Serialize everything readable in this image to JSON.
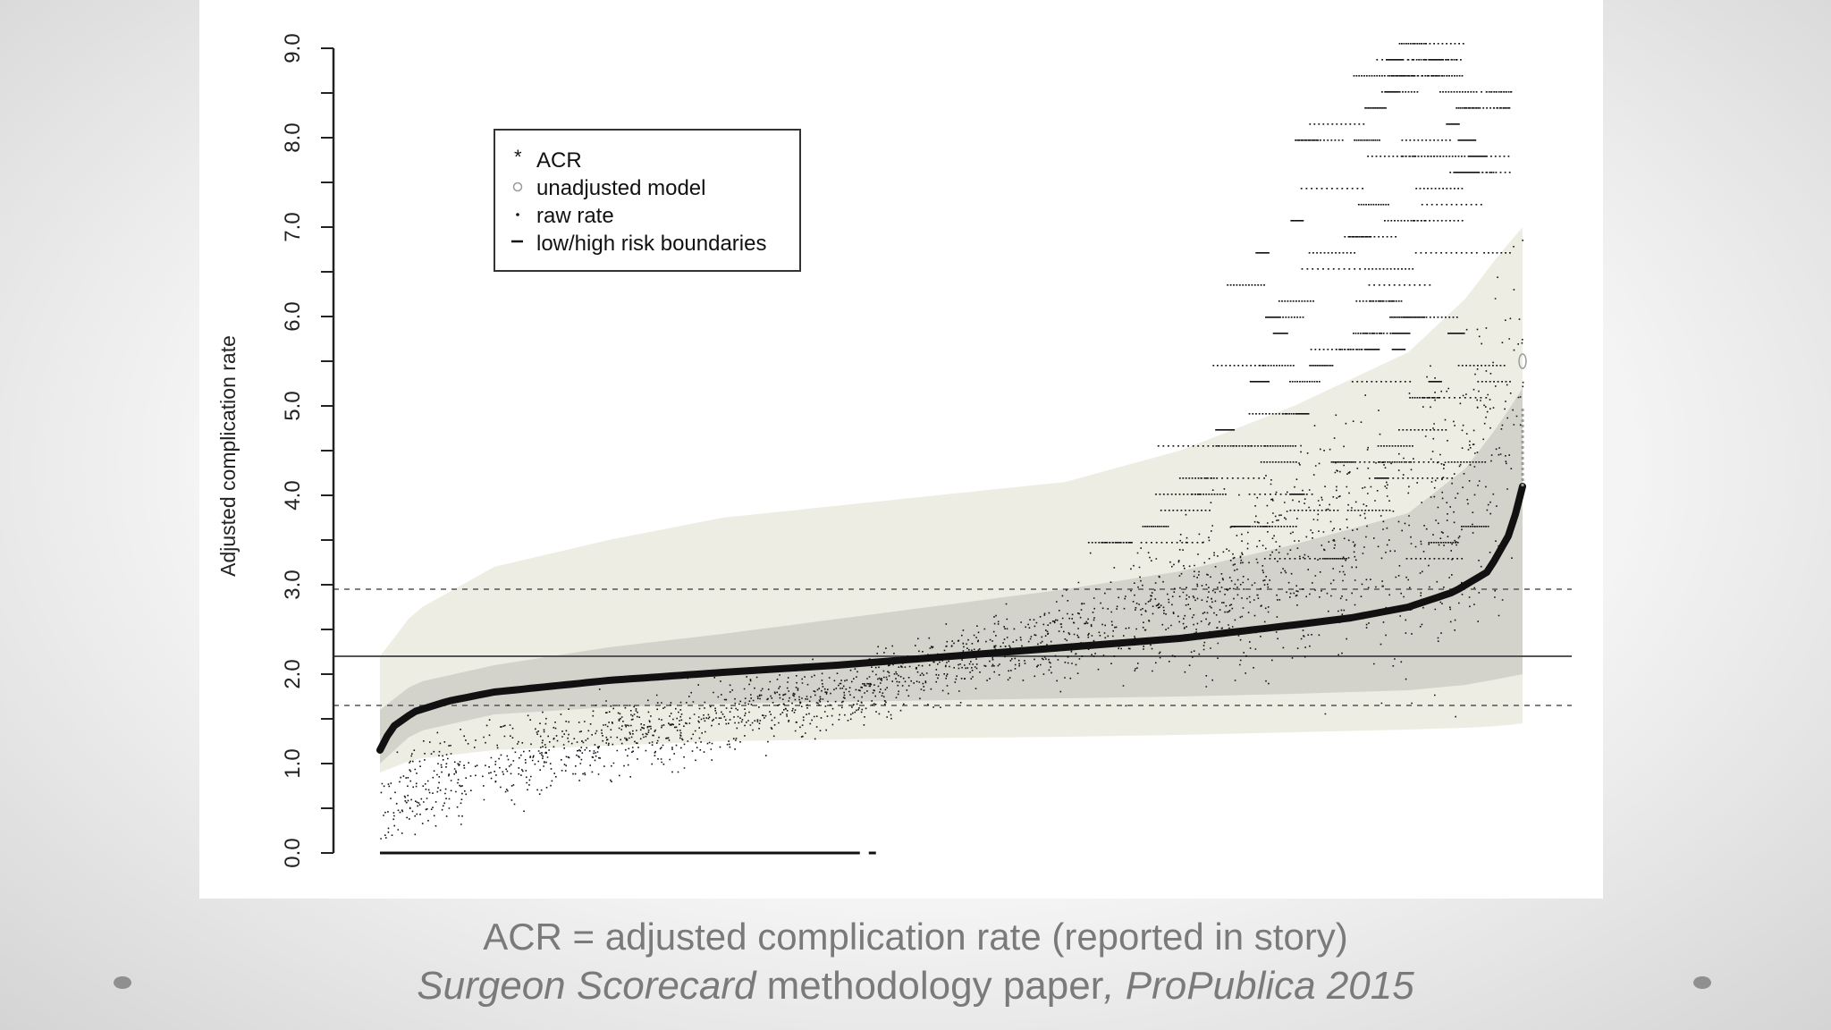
{
  "slide": {
    "caption_line1": "ACR = adjusted complication rate (reported in story)",
    "caption_line2_part1": "Surgeon Scorecard",
    "caption_line2_part2": " methodology paper",
    "caption_line2_part3": ", ProPublica 2015",
    "accent_colors": {
      "acr_curve": "#111111",
      "raw_rate_points": "#111111",
      "outer_band": "#ecece2",
      "inner_band": "#cfcfc8",
      "reference_line": "#555555",
      "caption_text": "#7a7a7a"
    }
  },
  "chart_data": {
    "type": "scatter",
    "title": "",
    "xlabel": "",
    "ylabel": "Adjusted complication rate",
    "ylim": [
      0,
      9.0
    ],
    "y_ticks": [
      "0.0",
      "1.0",
      "2.0",
      "3.0",
      "4.0",
      "5.0",
      "6.0",
      "7.0",
      "8.0",
      "9.0"
    ],
    "legend": {
      "placement": "top-left",
      "entries": [
        {
          "symbol": "*",
          "label": "ACR"
        },
        {
          "symbol": "o",
          "label": "unadjusted model"
        },
        {
          "symbol": ".",
          "label": "raw rate"
        },
        {
          "symbol": "-",
          "label": "low/high risk boundaries"
        }
      ]
    },
    "reference_lines": {
      "mean": 2.2,
      "low_risk_boundary": 1.65,
      "high_risk_boundary": 2.95
    },
    "series": [
      {
        "name": "ACR",
        "kind": "curve",
        "x": [
          0,
          0.01,
          0.03,
          0.06,
          0.1,
          0.2,
          0.3,
          0.4,
          0.5,
          0.6,
          0.7,
          0.8,
          0.85,
          0.9,
          0.94,
          0.97,
          0.99,
          1.0
        ],
        "y": [
          1.15,
          1.4,
          1.58,
          1.7,
          1.8,
          1.93,
          2.02,
          2.1,
          2.2,
          2.3,
          2.4,
          2.55,
          2.63,
          2.75,
          2.92,
          3.15,
          3.6,
          4.1
        ]
      },
      {
        "name": "outer band",
        "kind": "band",
        "x": [
          0,
          0.03,
          0.1,
          0.2,
          0.3,
          0.45,
          0.6,
          0.7,
          0.8,
          0.9,
          0.95,
          0.98,
          1.0
        ],
        "upper": [
          2.2,
          2.7,
          3.2,
          3.5,
          3.75,
          3.95,
          4.15,
          4.5,
          5.0,
          5.6,
          6.2,
          6.7,
          7.0
        ],
        "lower": [
          0.9,
          1.05,
          1.15,
          1.2,
          1.25,
          1.28,
          1.3,
          1.32,
          1.35,
          1.38,
          1.4,
          1.42,
          1.45
        ]
      },
      {
        "name": "inner band",
        "kind": "band",
        "x": [
          0,
          0.03,
          0.1,
          0.2,
          0.3,
          0.45,
          0.6,
          0.7,
          0.8,
          0.9,
          0.95,
          0.98,
          1.0
        ],
        "upper": [
          1.6,
          1.9,
          2.1,
          2.3,
          2.45,
          2.7,
          2.95,
          3.15,
          3.45,
          3.8,
          4.3,
          4.8,
          5.2
        ],
        "lower": [
          1.0,
          1.35,
          1.55,
          1.63,
          1.67,
          1.7,
          1.73,
          1.75,
          1.78,
          1.82,
          1.88,
          1.95,
          2.0
        ]
      },
      {
        "name": "raw rate",
        "kind": "scatter",
        "x_range": [
          0,
          1.0
        ],
        "zero_segment_x_range": [
          0,
          0.42
        ],
        "zero_value": 0,
        "max_value": 9.4,
        "description_values": {
          "left_spread": [
            0.2,
            2.1
          ],
          "middle_spread": [
            1.2,
            3.3
          ],
          "right_spread": [
            1.5,
            9.4
          ]
        }
      }
    ]
  }
}
